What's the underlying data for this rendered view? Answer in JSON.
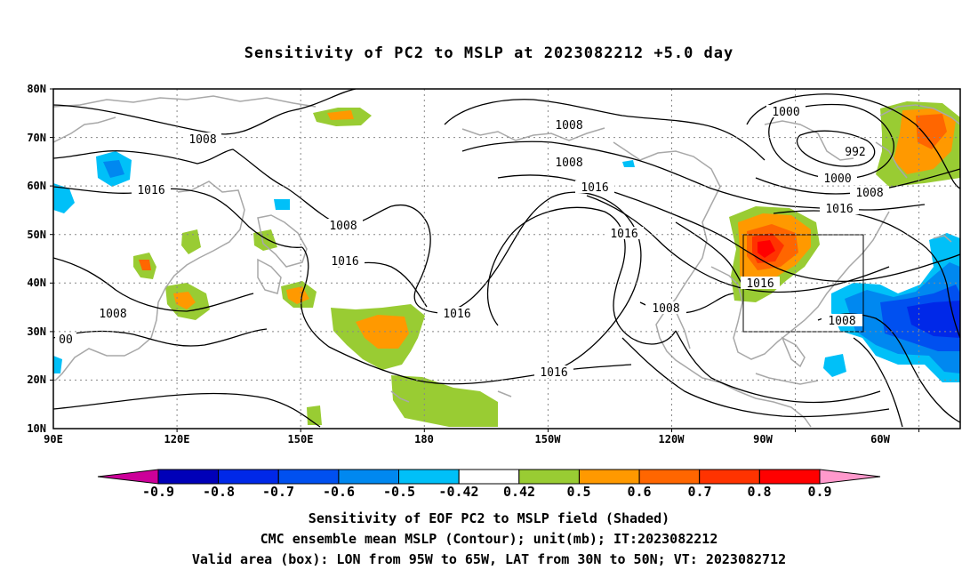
{
  "title": "Sensitivity of PC2 to MSLP at 2023082212 +5.0 day",
  "map": {
    "lat_labels": [
      "80N",
      "70N",
      "60N",
      "50N",
      "40N",
      "30N",
      "20N",
      "10N"
    ],
    "lon_labels": [
      "90E",
      "120E",
      "150E",
      "180",
      "150W",
      "120W",
      "90W",
      "60W"
    ],
    "extent": {
      "lon_min": 90,
      "lon_max": 310,
      "lat_min": 10,
      "lat_max": 80
    },
    "valid_box": {
      "lon": [
        265,
        295
      ],
      "lat": [
        30,
        50
      ]
    },
    "contour_labels": [
      "1008",
      "1016",
      "1016",
      "1008",
      "1008",
      "1016",
      "1016",
      "1008",
      "1008",
      "1016",
      "1016",
      "1016",
      "1000",
      "992",
      "1000",
      "1008",
      "1016",
      "1016",
      "1008",
      "1008",
      "00"
    ],
    "colors": {
      "contour": "#000000",
      "coastline": "#a8a8a8",
      "grid": "#888888"
    }
  },
  "colorbar": {
    "labels": [
      "-0.9",
      "-0.8",
      "-0.7",
      "-0.6",
      "-0.5",
      "-0.42",
      "0.42",
      "0.5",
      "0.6",
      "0.7",
      "0.8",
      "0.9"
    ],
    "colors": [
      "#0000b8",
      "#0028e8",
      "#0050f0",
      "#0088f0",
      "#00c0f8",
      "#ffffff",
      "#99cc33",
      "#ff9900",
      "#ff6600",
      "#ff3300",
      "#ff0000"
    ],
    "low_arrow_color": "#cc0099",
    "high_arrow_color": "#ff99cc"
  },
  "footer": {
    "line1": "Sensitivity of EOF PC2 to MSLP field (Shaded)",
    "line2": "CMC ensemble mean MSLP (Contour); unit(mb); IT:2023082212",
    "line3": "Valid area (box): LON from 95W to 65W, LAT from 30N to 50N; VT: 2023082712"
  }
}
